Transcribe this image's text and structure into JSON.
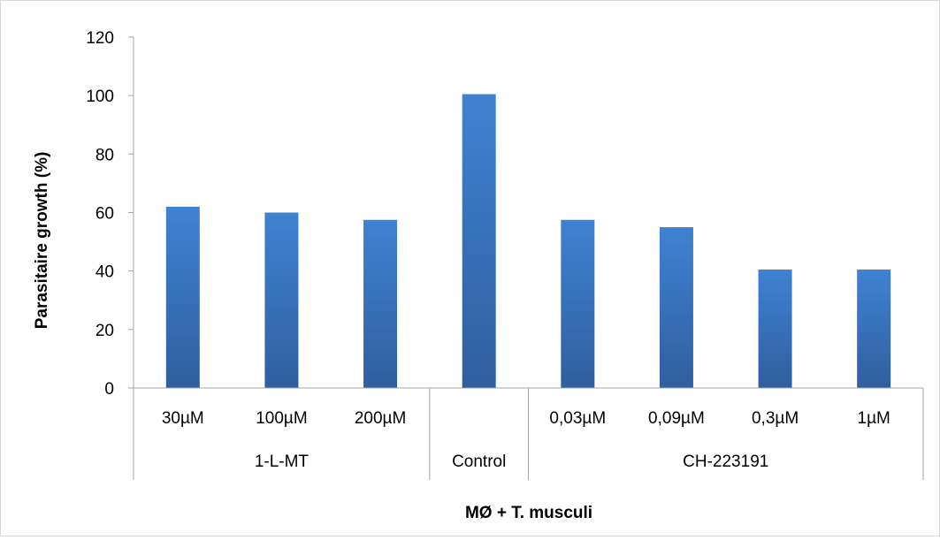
{
  "chart_data": {
    "type": "bar",
    "title": "",
    "xlabel": "MØ + T. musculi",
    "ylabel": "Parasitaire growth (%)",
    "ylim": [
      0,
      120
    ],
    "yticks": [
      0,
      20,
      40,
      60,
      80,
      100,
      120
    ],
    "categories": [
      "30µM",
      "100µM",
      "200µM",
      "",
      "0,03µM",
      "0,09µM",
      "0,3µM",
      "1µM"
    ],
    "groups": [
      {
        "label": "1-L-MT",
        "span": 3
      },
      {
        "label": "Control",
        "span": 1
      },
      {
        "label": "CH-223191",
        "span": 4
      }
    ],
    "values": [
      62,
      60,
      57.5,
      100.5,
      57.5,
      55,
      40.5,
      40.5
    ],
    "bar_color": "#3c7cc8",
    "grid": false,
    "legend": "none"
  }
}
